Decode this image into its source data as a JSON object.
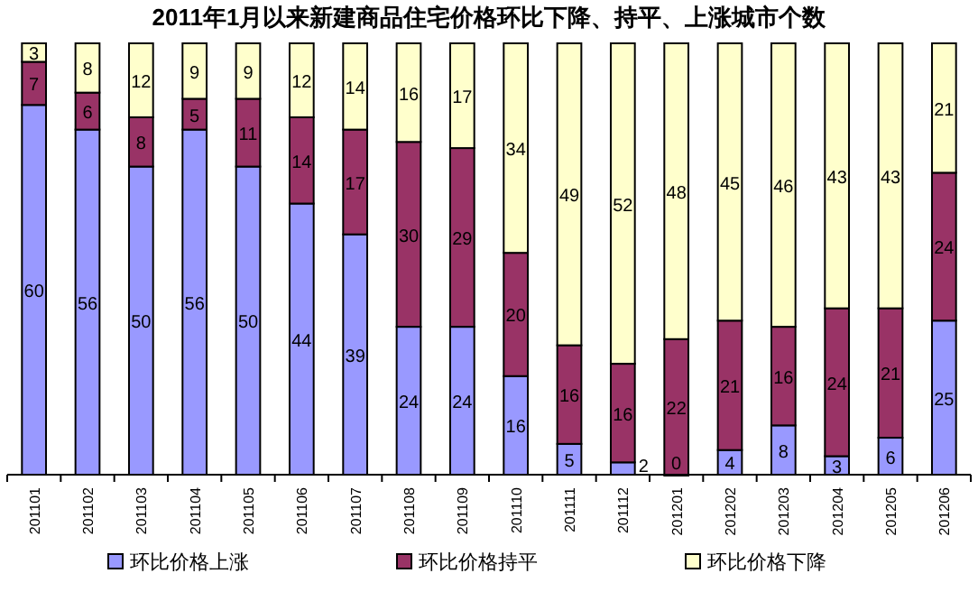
{
  "chart_data": {
    "type": "bar",
    "stacked": true,
    "data_labels": true,
    "legend": "bottom",
    "title": "2011年1月以来新建商品住宅价格环比下降、持平、上涨城市个数",
    "categories": [
      "201101",
      "201102",
      "201103",
      "201104",
      "201105",
      "201106",
      "201107",
      "201108",
      "201109",
      "201110",
      "201111",
      "201112",
      "201201",
      "201202",
      "201203",
      "201204",
      "201205",
      "201206"
    ],
    "series": [
      {
        "name": "环比价格上涨",
        "color": "#9999ff",
        "values": [
          60,
          56,
          50,
          56,
          50,
          44,
          39,
          24,
          24,
          16,
          5,
          2,
          0,
          4,
          8,
          3,
          6,
          25
        ]
      },
      {
        "name": "环比价格持平",
        "color": "#993366",
        "values": [
          7,
          6,
          8,
          5,
          11,
          14,
          17,
          30,
          29,
          20,
          16,
          16,
          22,
          21,
          16,
          24,
          21,
          24
        ]
      },
      {
        "name": "环比价格下降",
        "color": "#ffffcc",
        "values": [
          3,
          8,
          12,
          9,
          9,
          12,
          14,
          16,
          17,
          34,
          49,
          52,
          48,
          45,
          46,
          43,
          43,
          21
        ]
      }
    ]
  }
}
